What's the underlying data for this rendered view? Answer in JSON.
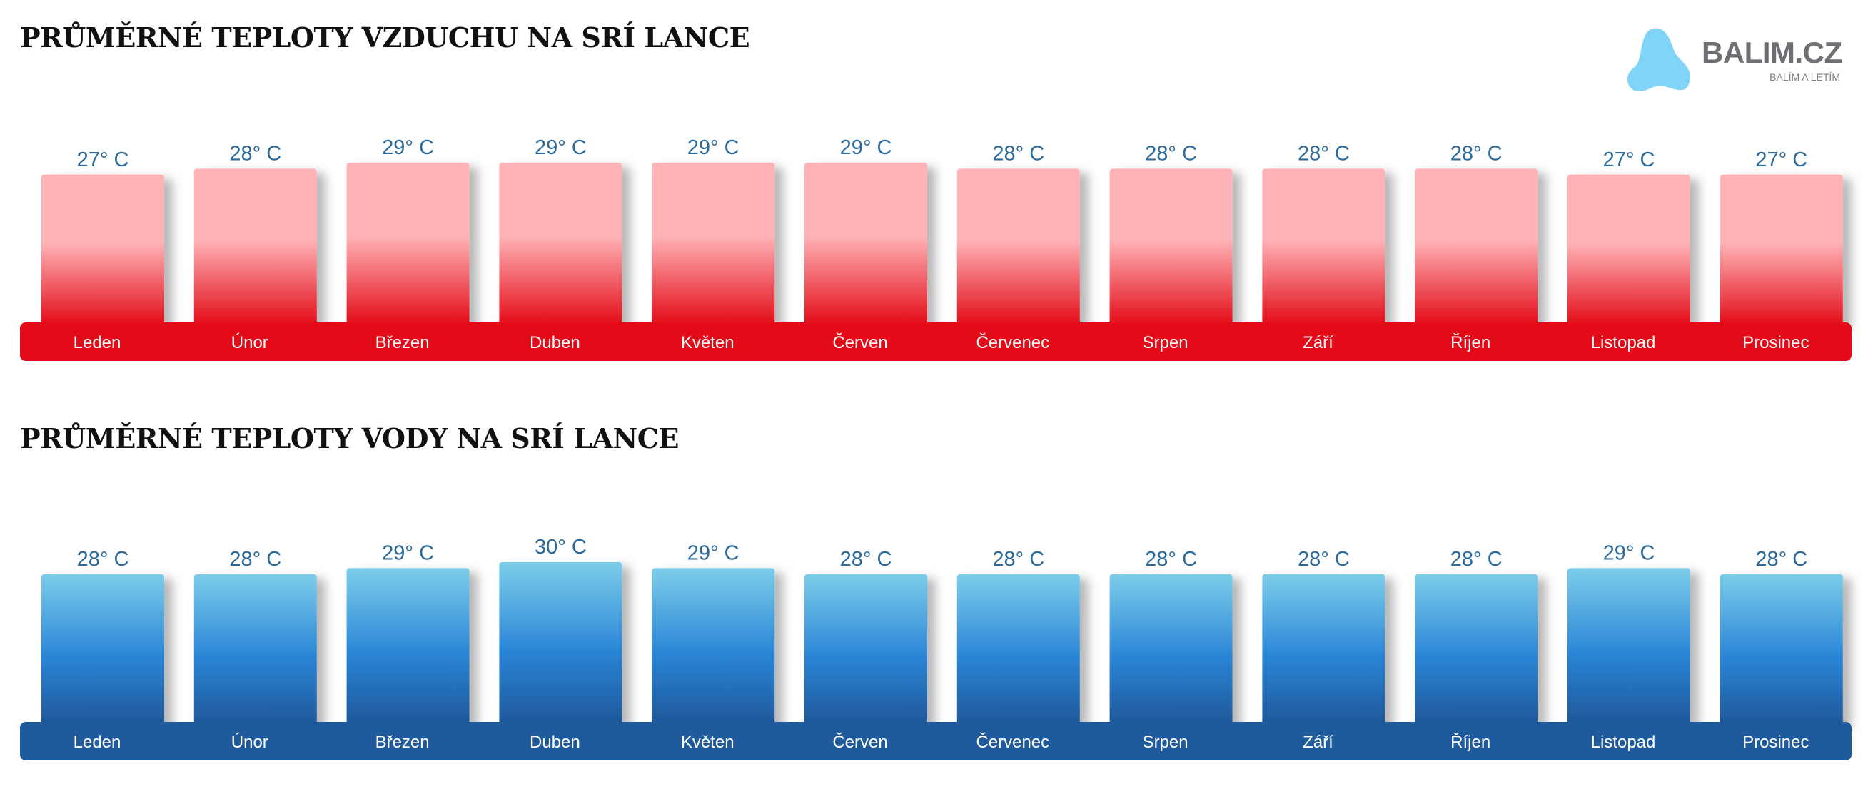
{
  "logo": {
    "name": "BALIM.CZ",
    "tagline": "BALÍM A LETÍM",
    "icon": "blob-logo-icon",
    "color": "#7fd4f7"
  },
  "chart_data": [
    {
      "type": "bar",
      "title": "PRŮMĚRNÉ TEPLOTY VZDUCHU NA SRÍ LANCE",
      "categories": [
        "Leden",
        "Únor",
        "Březen",
        "Duben",
        "Květen",
        "Červen",
        "Červenec",
        "Srpen",
        "Září",
        "Říjen",
        "Listopad",
        "Prosinec"
      ],
      "values": [
        27,
        28,
        29,
        29,
        29,
        29,
        28,
        28,
        28,
        28,
        27,
        27
      ],
      "value_labels": [
        "27° C",
        "28° C",
        "29° C",
        "29° C",
        "29° C",
        "29° C",
        "28° C",
        "28° C",
        "28° C",
        "28° C",
        "27° C",
        "27° C"
      ],
      "unit": "° C",
      "colors": {
        "top": "#ffb3b7",
        "bottom": "#e30b17",
        "band": "#e30b17",
        "label": "#2b6a9a"
      }
    },
    {
      "type": "bar",
      "title": "PRŮMĚRNÉ TEPLOTY VODY NA SRÍ LANCE",
      "categories": [
        "Leden",
        "Únor",
        "Březen",
        "Duben",
        "Květen",
        "Červen",
        "Červenec",
        "Srpen",
        "Září",
        "Říjen",
        "Listopad",
        "Prosinec"
      ],
      "values": [
        28,
        28,
        29,
        30,
        29,
        28,
        28,
        28,
        28,
        28,
        29,
        28
      ],
      "value_labels": [
        "28° C",
        "28° C",
        "29° C",
        "30° C",
        "29° C",
        "28° C",
        "28° C",
        "28° C",
        "28° C",
        "28° C",
        "29° C",
        "28° C"
      ],
      "unit": "° C",
      "colors": {
        "top": "#7ccdea",
        "mid": "#2a85d6",
        "bottom": "#1e5799",
        "band": "#1f5a9c",
        "label": "#2b6a9a"
      }
    }
  ]
}
